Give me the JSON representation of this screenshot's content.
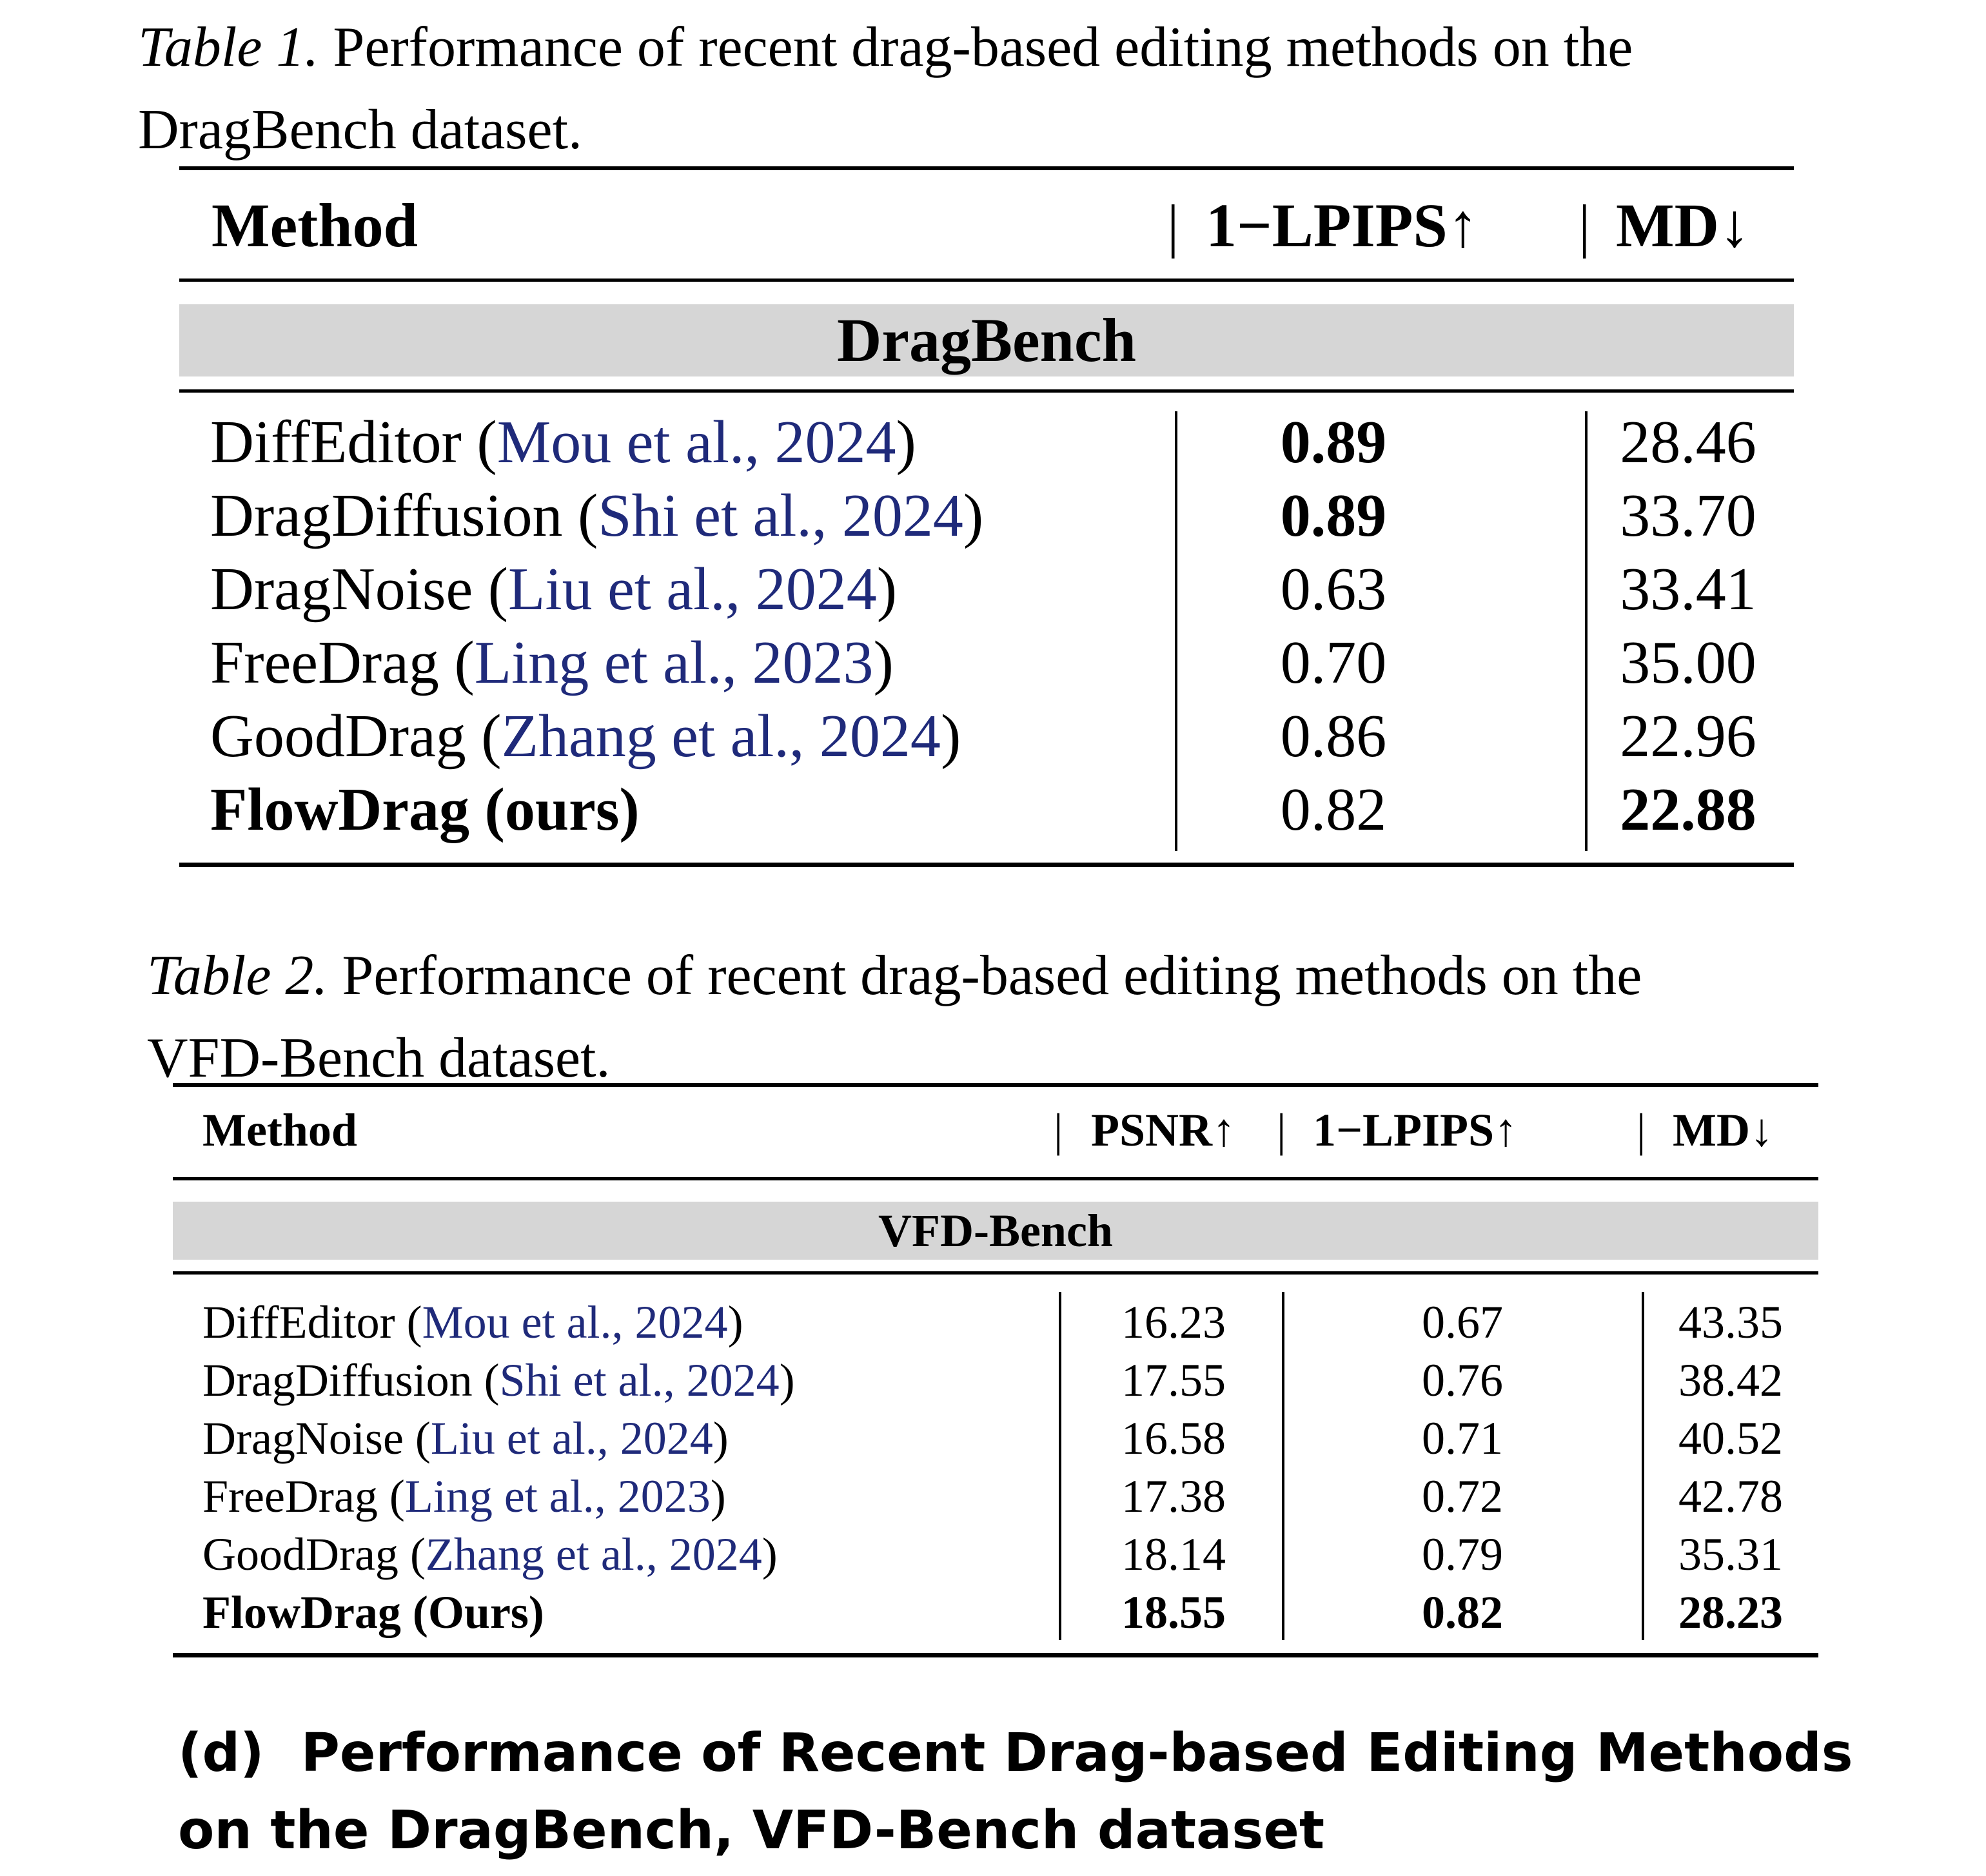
{
  "table1": {
    "caption_label": "Table 1.",
    "caption_line1": "Performance of recent drag-based editing methods on the",
    "caption_line2": "DragBench dataset.",
    "headers": {
      "method": "Method",
      "sep1": "|",
      "lpips": "1−LPIPS↑",
      "sep2": "|",
      "md": "MD↓"
    },
    "section": "DragBench",
    "rows": [
      {
        "method": "DiffEditor",
        "open": " (",
        "cite": "Mou et al., 2024",
        "close": ")",
        "lpips": "0.89",
        "md": "28.46"
      },
      {
        "method": "DragDiffusion",
        "open": " (",
        "cite": "Shi et al., 2024",
        "close": ")",
        "lpips": "0.89",
        "md": "33.70"
      },
      {
        "method": "DragNoise",
        "open": " (",
        "cite": "Liu et al., 2024",
        "close": ")",
        "lpips": "0.63",
        "md": "33.41"
      },
      {
        "method": "FreeDrag",
        "open": " (",
        "cite": "Ling et al., 2023",
        "close": ")",
        "lpips": "0.70",
        "md": "35.00"
      },
      {
        "method": "GoodDrag",
        "open": " (",
        "cite": "Zhang et al., 2024",
        "close": ")",
        "lpips": "0.86",
        "md": "22.96"
      },
      {
        "method": "FlowDrag (ours)",
        "lpips": "0.82",
        "md": "22.88"
      }
    ]
  },
  "table2": {
    "caption_label": "Table 2.",
    "caption_line1": "Performance of recent drag-based editing methods on the",
    "caption_line2": "VFD-Bench dataset.",
    "headers": {
      "method": "Method",
      "sep1": "|",
      "psnr": "PSNR↑",
      "sep2": "|",
      "lpips": "1−LPIPS↑",
      "sep3": "|",
      "md": "MD↓"
    },
    "section": "VFD-Bench",
    "rows": [
      {
        "method": "DiffEditor",
        "open": " (",
        "cite": "Mou et al., 2024",
        "close": ")",
        "psnr": "16.23",
        "lpips": "0.67",
        "md": "43.35"
      },
      {
        "method": "DragDiffusion",
        "open": " (",
        "cite": "Shi et al., 2024",
        "close": ")",
        "psnr": "17.55",
        "lpips": "0.76",
        "md": "38.42"
      },
      {
        "method": "DragNoise",
        "open": " (",
        "cite": "Liu et al., 2024",
        "close": ")",
        "psnr": "16.58",
        "lpips": "0.71",
        "md": "40.52"
      },
      {
        "method": "FreeDrag",
        "open": " (",
        "cite": "Ling et al., 2023",
        "close": ")",
        "psnr": "17.38",
        "lpips": "0.72",
        "md": "42.78"
      },
      {
        "method": "GoodDrag",
        "open": " (",
        "cite": "Zhang et al., 2024",
        "close": ")",
        "psnr": "18.14",
        "lpips": "0.79",
        "md": "35.31"
      },
      {
        "method": "FlowDrag (Ours)",
        "psnr": "18.55",
        "lpips": "0.82",
        "md": "28.23"
      }
    ]
  },
  "figure_caption": {
    "line1": "(d)  Performance of Recent Drag-based Editing Methods",
    "line2": "on the DragBench, VFD-Bench dataset"
  }
}
